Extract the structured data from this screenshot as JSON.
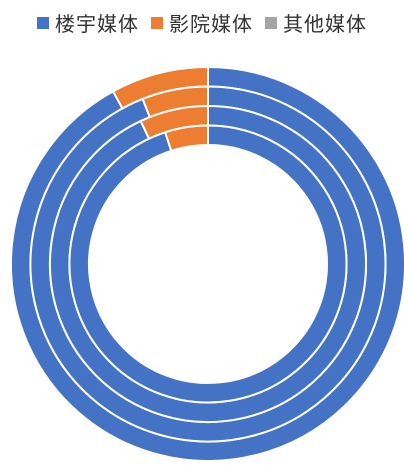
{
  "chart_data": {
    "type": "doughnut",
    "legend_position": "top",
    "series": [
      {
        "name": "楼宇媒体",
        "color": "#4472C4"
      },
      {
        "name": "影院媒体",
        "color": "#ED7D31"
      },
      {
        "name": "其他媒体",
        "color": "#A5A5A5"
      }
    ],
    "rings": [
      {
        "values": [
          92,
          8,
          0
        ]
      },
      {
        "values": [
          94,
          6,
          0
        ]
      },
      {
        "values": [
          93,
          7,
          0
        ]
      },
      {
        "values": [
          95,
          5,
          0
        ]
      }
    ]
  }
}
